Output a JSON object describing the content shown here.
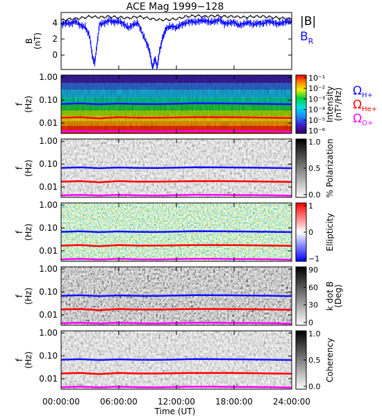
{
  "title": "ACE Mag 1999−128",
  "colors": {
    "black": "#000000",
    "blue": "#1010ff",
    "red": "#ff0000",
    "magenta": "#ff00ff"
  },
  "chart_data": [
    {
      "type": "line",
      "panel": "magnetic-field",
      "ylabel_lines": [
        "B",
        "(nT)"
      ],
      "yticks": [
        "0",
        "2",
        "4"
      ],
      "ylim": [
        -1.8,
        5.3
      ],
      "legend": [
        {
          "text": "|B|",
          "color": "black"
        },
        {
          "text": "B",
          "sub": "R",
          "color": "blue"
        }
      ],
      "series": [
        {
          "name": "|B|",
          "color": "black",
          "x": [
            0,
            1,
            2,
            3,
            4,
            5,
            6,
            7,
            8,
            9,
            10,
            11,
            12,
            13,
            14,
            15,
            16,
            17,
            18,
            19,
            20,
            21,
            22,
            23,
            24
          ],
          "values": [
            4.3,
            4.5,
            4.6,
            4.8,
            4.7,
            4.8,
            4.7,
            4.6,
            4.8,
            4.6,
            4.4,
            4.4,
            4.5,
            4.8,
            4.9,
            4.8,
            4.9,
            4.8,
            4.8,
            4.7,
            4.8,
            4.8,
            4.7,
            4.6,
            4.5
          ]
        },
        {
          "name": "B_R",
          "color": "blue",
          "x": [
            0,
            0.5,
            1,
            1.5,
            2,
            2.5,
            3,
            3.25,
            3.5,
            3.75,
            4,
            4.5,
            5,
            5.5,
            6,
            6.5,
            7,
            7.5,
            8,
            8.5,
            9,
            9.25,
            9.5,
            9.75,
            10,
            10.25,
            10.5,
            10.75,
            11,
            11.5,
            12,
            12.5,
            13,
            13.5,
            14,
            14.5,
            15,
            15.5,
            16,
            16.5,
            17,
            17.5,
            18,
            18.5,
            19,
            19.5,
            20,
            20.5,
            21,
            21.5,
            22,
            22.5,
            23,
            23.5,
            24
          ],
          "values": [
            3.8,
            4.0,
            3.9,
            4.2,
            3.7,
            3.5,
            2.3,
            -0.2,
            -1.0,
            1.5,
            3.8,
            4.0,
            4.3,
            4.1,
            4.2,
            3.9,
            3.4,
            3.8,
            4.0,
            2.6,
            1.2,
            0.3,
            -1.7,
            -0.4,
            -1.5,
            0.5,
            1.8,
            2.8,
            3.4,
            3.6,
            3.4,
            3.8,
            4.0,
            4.2,
            4.1,
            4.3,
            4.3,
            4.1,
            4.2,
            4.4,
            3.9,
            4.0,
            4.1,
            3.7,
            3.9,
            4.1,
            3.8,
            4.0,
            3.9,
            4.2,
            4.1,
            3.9,
            4.0,
            4.2,
            4.1
          ]
        }
      ]
    },
    {
      "type": "heatmap",
      "panel": "intensity",
      "ylabel_lines": [
        "f",
        "(Hz)"
      ],
      "yticks": [
        "0.01",
        "0.10",
        "1.00"
      ],
      "colorbar": {
        "label": "Intensity",
        "label2": "(nT²/Hz)",
        "palette": "rainbow",
        "ticks": [
          "10⁻¹",
          "10⁻²",
          "10⁻³",
          "10⁻⁴",
          "10⁻⁵",
          "10⁻⁶"
        ]
      },
      "legend": [
        {
          "text": "Ω",
          "sub": "H+",
          "color": "blue"
        },
        {
          "text": "Ω",
          "sub": "He+",
          "color": "red"
        },
        {
          "text": "Ω",
          "sub": "O+",
          "color": "magenta"
        }
      ]
    },
    {
      "type": "heatmap",
      "panel": "polarization",
      "ylabel_lines": [
        "f",
        "(Hz)"
      ],
      "yticks": [
        "0.01",
        "0.10",
        "1.00"
      ],
      "colorbar": {
        "label": "% Polarization",
        "palette": "gray",
        "ticks": [
          "1.0",
          "0.5",
          "0.0"
        ]
      }
    },
    {
      "type": "heatmap",
      "panel": "ellipticity",
      "ylabel_lines": [
        "f",
        "(Hz)"
      ],
      "yticks": [
        "0.01",
        "0.10",
        "1.00"
      ],
      "colorbar": {
        "label": "Ellipticity",
        "palette": "bwr",
        "ticks": [
          "1",
          "0",
          "−1"
        ]
      }
    },
    {
      "type": "heatmap",
      "panel": "kdotb",
      "ylabel_lines": [
        "f",
        "(Hz)"
      ],
      "yticks": [
        "0.01",
        "0.10",
        "1.00"
      ],
      "colorbar": {
        "label": "k dot B",
        "label2": "(Deg)",
        "palette": "grayinv",
        "ticks": [
          "90",
          "60",
          "30",
          "0"
        ]
      }
    },
    {
      "type": "heatmap",
      "panel": "coherency",
      "ylabel_lines": [
        "f",
        "(Hz)"
      ],
      "yticks": [
        "0.01",
        "0.10",
        "1.00"
      ],
      "colorbar": {
        "label": "Coherency",
        "palette": "gray",
        "ticks": [
          "1.0",
          "0.5",
          "0.0"
        ]
      }
    }
  ],
  "gyrofrequencies": {
    "H+": {
      "color": "blue",
      "x": [
        0,
        2,
        4,
        6,
        8,
        10,
        12,
        14,
        16,
        18,
        20,
        22,
        24
      ],
      "freq_hz": [
        0.068,
        0.072,
        0.066,
        0.071,
        0.068,
        0.067,
        0.07,
        0.073,
        0.072,
        0.071,
        0.07,
        0.068,
        0.066
      ]
    },
    "He+": {
      "color": "red",
      "x": [
        0,
        2,
        4,
        6,
        8,
        10,
        12,
        14,
        16,
        18,
        20,
        22,
        24
      ],
      "freq_hz": [
        0.017,
        0.018,
        0.016,
        0.018,
        0.017,
        0.017,
        0.0175,
        0.018,
        0.018,
        0.0178,
        0.0175,
        0.017,
        0.0165
      ]
    },
    "O+": {
      "color": "magenta",
      "x": [
        0,
        2,
        4,
        6,
        8,
        10,
        12,
        14,
        16,
        18,
        20,
        22,
        24
      ],
      "freq_hz": [
        0.0043,
        0.0045,
        0.0042,
        0.0045,
        0.0043,
        0.0042,
        0.0044,
        0.0045,
        0.0045,
        0.0044,
        0.0044,
        0.0043,
        0.0041
      ]
    }
  },
  "x_axis": {
    "label": "Time (UT)",
    "ticks": [
      "00:00:00",
      "06:00:00",
      "12:00:00",
      "18:00:00",
      "24:00:00"
    ]
  }
}
